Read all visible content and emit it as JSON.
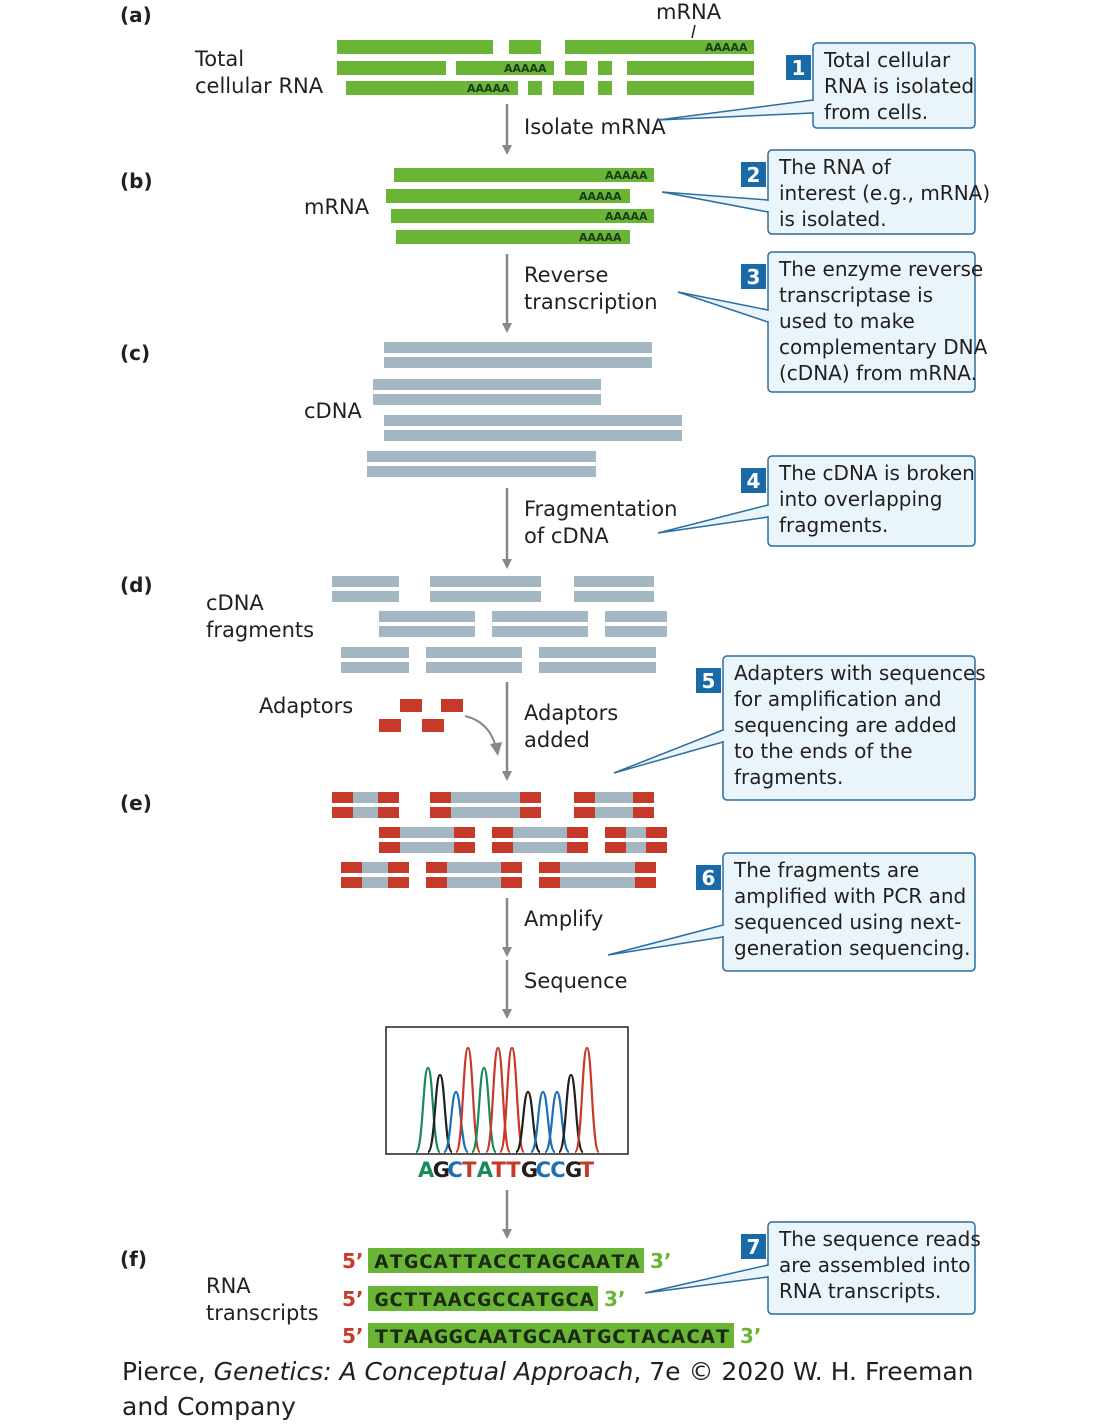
{
  "panels": {
    "a": "(a)",
    "b": "(b)",
    "c": "(c)",
    "d": "(d)",
    "e": "(e)",
    "f": "(f)"
  },
  "labels": {
    "mrna_top": "mRNA",
    "total_rna_1": "Total",
    "total_rna_2": "cellular RNA",
    "mrna_b": "mRNA",
    "cdna": "cDNA",
    "cdna_frag_1": "cDNA",
    "cdna_frag_2": "fragments",
    "adaptors": "Adaptors",
    "rna_transcripts_1": "RNA",
    "rna_transcripts_2": "transcripts",
    "polyA": "AAAAA"
  },
  "steps": {
    "isolate": [
      "Isolate mRNA"
    ],
    "reverse": [
      "Reverse",
      "transcription"
    ],
    "fragment": [
      "Fragmentation",
      "of cDNA"
    ],
    "adaptors": [
      "Adaptors",
      "added"
    ],
    "amplify": [
      "Amplify"
    ],
    "sequence": [
      "Sequence"
    ]
  },
  "callouts": [
    {
      "num": "1",
      "lines": [
        "Total cellular",
        "RNA is isolated",
        "from cells."
      ]
    },
    {
      "num": "2",
      "lines": [
        "The RNA of",
        "interest (e.g., mRNA)",
        "is isolated."
      ]
    },
    {
      "num": "3",
      "lines": [
        "The enzyme reverse",
        "transcriptase is",
        "used to make",
        "complementary DNA",
        "(cDNA) from mRNA."
      ]
    },
    {
      "num": "4",
      "lines": [
        "The cDNA is broken",
        "into overlapping",
        "fragments."
      ]
    },
    {
      "num": "5",
      "lines": [
        "Adapters with sequences",
        "for amplification and",
        "sequencing are added",
        "to the ends of the",
        "fragments."
      ]
    },
    {
      "num": "6",
      "lines": [
        "The fragments are",
        "amplified with PCR and",
        "sequenced using next-",
        "generation sequencing."
      ]
    },
    {
      "num": "7",
      "lines": [
        "The sequence reads",
        "are assembled into",
        "RNA transcripts."
      ]
    }
  ],
  "sequencing_bases": [
    "A",
    "G",
    "C",
    "T",
    "A",
    "T",
    "T",
    "G",
    "C",
    "C",
    "G",
    "T"
  ],
  "transcripts": [
    {
      "five": "5’",
      "seq": "ATGCATTACCTAGCAATA",
      "three": "3’"
    },
    {
      "five": "5’",
      "seq": "GCTTAACGCCATGCA",
      "three": "3’"
    },
    {
      "five": "5’",
      "seq": "TTAAGGCAATGCAATGCTACACAT",
      "three": "3’"
    }
  ],
  "colors": {
    "rna_green": "#6ab536",
    "cdna_gray": "#a3b7c3",
    "adaptor_red": "#c73a2a",
    "callout_fill": "#eaf4fb",
    "callout_border": "#2b6ea0",
    "number_box": "#1a6aa8",
    "arrow_gray": "#888888",
    "base_A": "#1b8a5a",
    "base_G": "#231f20",
    "base_C": "#1f6fb5",
    "base_T": "#c73a2a"
  },
  "credit": {
    "author": "Pierce, ",
    "title": "Genetics: A Conceptual Approach",
    "rest": ", 7e © 2020 W. H. Freeman and Company"
  }
}
